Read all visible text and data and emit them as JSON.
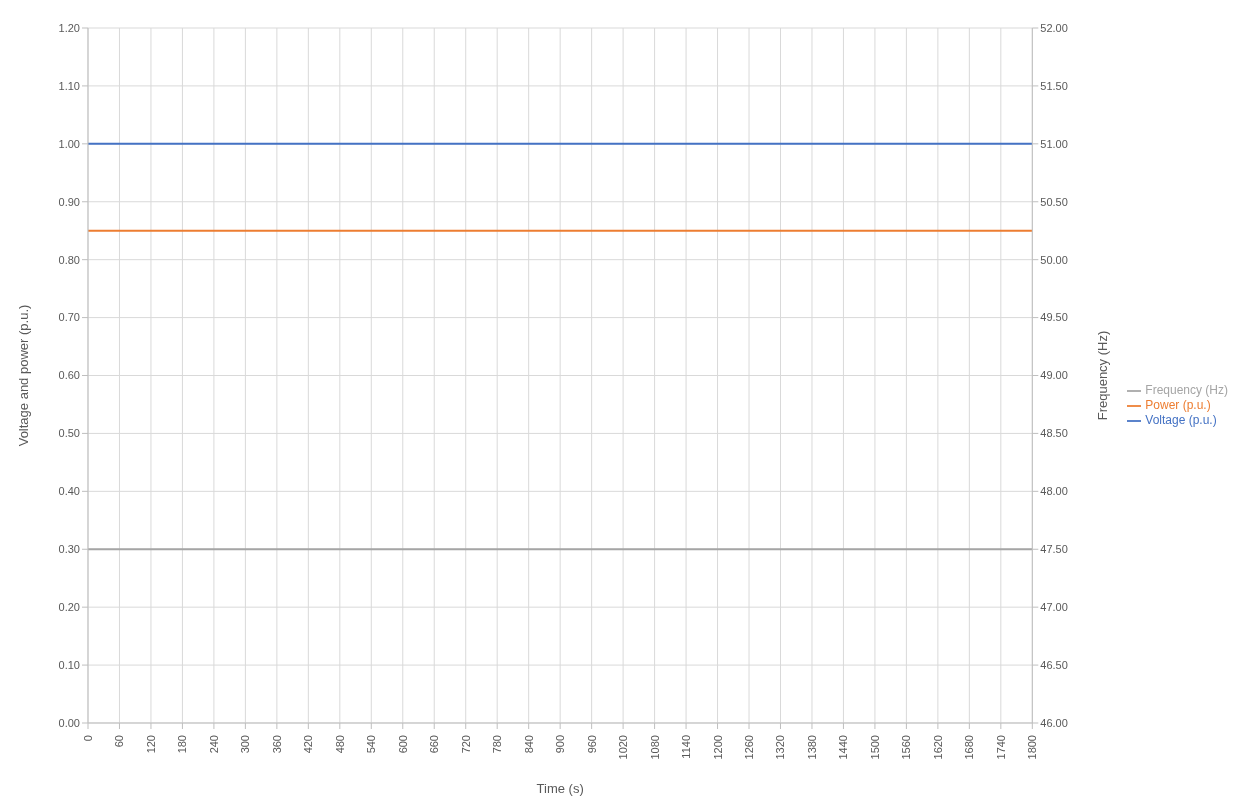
{
  "chart_data": {
    "type": "line",
    "xlabel": "Time (s)",
    "ylabel": "Voltage and power (p.u.)",
    "y2label": "Frequency (Hz)",
    "x": [
      0,
      1800
    ],
    "series": [
      {
        "name": "Voltage (p.u.)",
        "color": "#4472c4",
        "values": [
          1.0,
          1.0
        ]
      },
      {
        "name": "Power (p.u.)",
        "color": "#ed7d31",
        "values": [
          0.85,
          0.85
        ]
      },
      {
        "name": "Frequency (Hz)",
        "color": "#a5a5a5",
        "values": [
          47.5,
          47.5
        ],
        "axis": "y2"
      }
    ],
    "xlim": [
      0,
      1800
    ],
    "xticks": [
      0,
      60,
      120,
      180,
      240,
      300,
      360,
      420,
      480,
      540,
      600,
      660,
      720,
      780,
      840,
      900,
      960,
      1020,
      1080,
      1140,
      1200,
      1260,
      1320,
      1380,
      1440,
      1500,
      1560,
      1620,
      1680,
      1740,
      1800
    ],
    "ylim": [
      0,
      1.2
    ],
    "yticks": [
      {
        "value": 0,
        "label": "0.00"
      },
      {
        "value": 0.1,
        "label": "0.10"
      },
      {
        "value": 0.2,
        "label": "0.20"
      },
      {
        "value": 0.3,
        "label": "0.30"
      },
      {
        "value": 0.4,
        "label": "0.40"
      },
      {
        "value": 0.5,
        "label": "0.50"
      },
      {
        "value": 0.6,
        "label": "0.60"
      },
      {
        "value": 0.7,
        "label": "0.70"
      },
      {
        "value": 0.8,
        "label": "0.80"
      },
      {
        "value": 0.9,
        "label": "0.90"
      },
      {
        "value": 1.0,
        "label": "1.00"
      },
      {
        "value": 1.1,
        "label": "1.10"
      },
      {
        "value": 1.2,
        "label": "1.20"
      }
    ],
    "y2lim": [
      46,
      52
    ],
    "y2ticks": [
      {
        "value": 46,
        "label": "46.00"
      },
      {
        "value": 46.5,
        "label": "46.50"
      },
      {
        "value": 47,
        "label": "47.00"
      },
      {
        "value": 47.5,
        "label": "47.50"
      },
      {
        "value": 48,
        "label": "48.00"
      },
      {
        "value": 48.5,
        "label": "48.50"
      },
      {
        "value": 49,
        "label": "49.00"
      },
      {
        "value": 49.5,
        "label": "49.50"
      },
      {
        "value": 50,
        "label": "50.00"
      },
      {
        "value": 50.5,
        "label": "50.50"
      },
      {
        "value": 51,
        "label": "51.00"
      },
      {
        "value": 51.5,
        "label": "51.50"
      },
      {
        "value": 52,
        "label": "52.00"
      }
    ],
    "grid": true,
    "legend": "right",
    "marker": "none",
    "line_style": "solid"
  }
}
